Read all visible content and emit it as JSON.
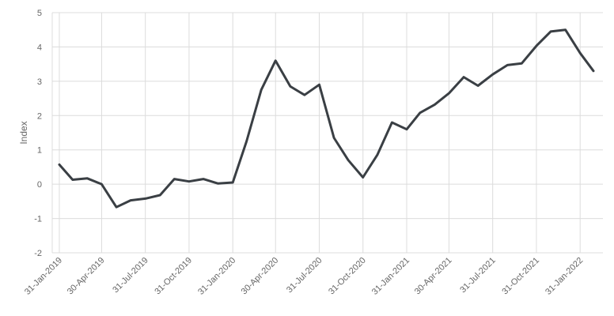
{
  "chart_data": {
    "type": "line",
    "title": "",
    "xlabel": "",
    "ylabel": "Index",
    "ylim": [
      -2,
      5
    ],
    "yticks": [
      -2,
      -1,
      0,
      1,
      2,
      3,
      4,
      5
    ],
    "grid": true,
    "line_color": "#3a3f44",
    "grid_color": "#dcdcdc",
    "x_tick_labels": [
      "31-Jan-2019",
      "30-Apr-2019",
      "31-Jul-2019",
      "31-Oct-2019",
      "31-Jan-2020",
      "30-Apr-2020",
      "31-Jul-2020",
      "31-Oct-2020",
      "31-Jan-2021",
      "30-Apr-2021",
      "31-Jul-2021",
      "31-Oct-2021",
      "31-Jan-2022"
    ],
    "series": [
      {
        "x": [
          "2019-01-31",
          "2019-02-28",
          "2019-03-31",
          "2019-04-30",
          "2019-05-31",
          "2019-06-30",
          "2019-07-31",
          "2019-08-31",
          "2019-09-30",
          "2019-10-31",
          "2019-11-30",
          "2019-12-31",
          "2020-01-31",
          "2020-02-29",
          "2020-03-31",
          "2020-04-30",
          "2020-05-31",
          "2020-06-30",
          "2020-07-31",
          "2020-08-31",
          "2020-09-30",
          "2020-10-31",
          "2020-11-30",
          "2020-12-31",
          "2021-01-31",
          "2021-02-28",
          "2021-03-31",
          "2021-04-30",
          "2021-05-31",
          "2021-06-30",
          "2021-07-31",
          "2021-08-31",
          "2021-09-30",
          "2021-10-31",
          "2021-11-30",
          "2021-12-31",
          "2022-01-31",
          "2022-02-28"
        ],
        "values": [
          0.57,
          0.13,
          0.17,
          0.0,
          -0.67,
          -0.47,
          -0.42,
          -0.32,
          0.15,
          0.08,
          0.15,
          0.02,
          0.05,
          1.25,
          2.75,
          3.6,
          2.85,
          2.6,
          2.9,
          1.35,
          0.7,
          0.2,
          0.85,
          1.8,
          1.6,
          2.08,
          2.32,
          2.65,
          3.12,
          2.87,
          3.2,
          3.47,
          3.52,
          4.03,
          4.45,
          4.5,
          3.82,
          3.3
        ]
      }
    ]
  }
}
